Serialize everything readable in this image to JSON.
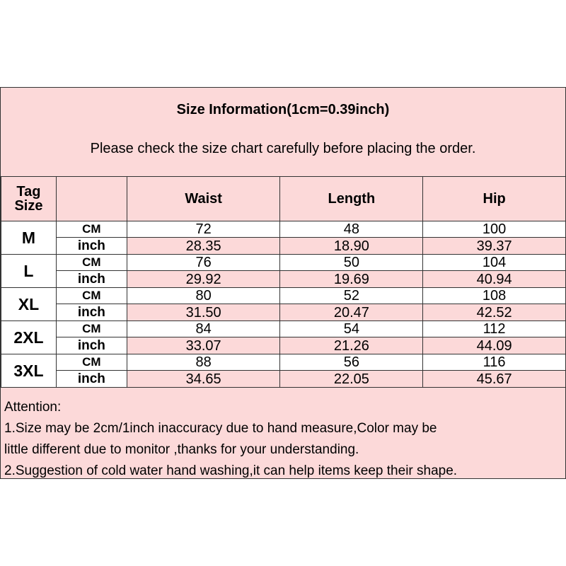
{
  "title": "Size Information(1cm=0.39inch)",
  "subtitle": "Please check the size chart carefully before placing the order.",
  "header": {
    "tag_size_line1": "Tag",
    "tag_size_line2": "Size",
    "columns": [
      "Waist",
      "Length",
      "Hip"
    ]
  },
  "rows": [
    {
      "size": "M",
      "cm_label": "CM",
      "inch_label": "inch",
      "cm": [
        "72",
        "48",
        "100"
      ],
      "inch": [
        "28.35",
        "18.90",
        "39.37"
      ]
    },
    {
      "size": "L",
      "cm_label": "CM",
      "inch_label": "inch",
      "cm": [
        "76",
        "50",
        "104"
      ],
      "inch": [
        "29.92",
        "19.69",
        "40.94"
      ]
    },
    {
      "size": "XL",
      "cm_label": "CM",
      "inch_label": "inch",
      "cm": [
        "80",
        "52",
        "108"
      ],
      "inch": [
        "31.50",
        "20.47",
        "42.52"
      ]
    },
    {
      "size": "2XL",
      "cm_label": "CM",
      "inch_label": "inch",
      "cm": [
        "84",
        "54",
        "112"
      ],
      "inch": [
        "33.07",
        "21.26",
        "44.09"
      ]
    },
    {
      "size": "3XL",
      "cm_label": "CM",
      "inch_label": "inch",
      "cm": [
        "88",
        "56",
        "116"
      ],
      "inch": [
        "34.65",
        "22.05",
        "45.67"
      ]
    }
  ],
  "footer": {
    "heading": "Attention:",
    "lines": [
      "1.Size may be 2cm/1inch inaccuracy due to hand measure,Color may be",
      "little different due to monitor ,thanks for your understanding.",
      "2.Suggestion of cold water hand washing,it can help items keep their shape."
    ]
  },
  "colors": {
    "pink": "#fcd9d9",
    "border": "#333333"
  }
}
